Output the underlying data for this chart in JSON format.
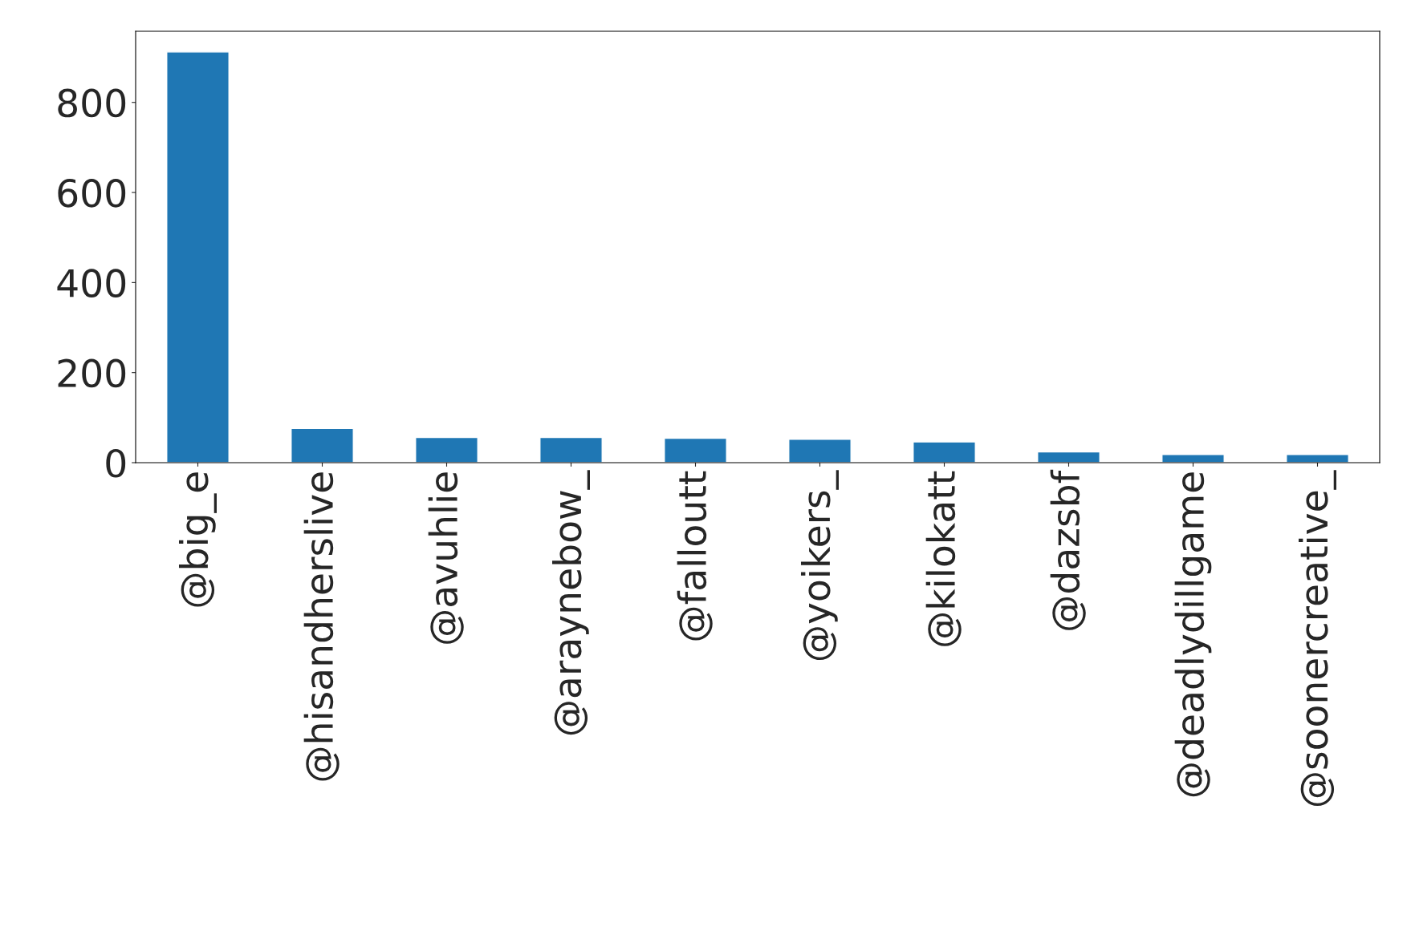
{
  "chart_data": {
    "type": "bar",
    "categories": [
      "@big_e",
      "@hisandherslive",
      "@avuhlie",
      "@araynebow_",
      "@falloutt",
      "@yoikers_",
      "@kilokatt",
      "@dazsbf",
      "@deadlydillgame",
      "@soonercreative_"
    ],
    "values": [
      912,
      76,
      56,
      56,
      54,
      52,
      46,
      24,
      18,
      18
    ],
    "color": "#1f77b4",
    "ylim": [
      0,
      958
    ],
    "yticks": [
      0,
      200,
      400,
      600,
      800
    ],
    "grid": false,
    "legend": false
  }
}
